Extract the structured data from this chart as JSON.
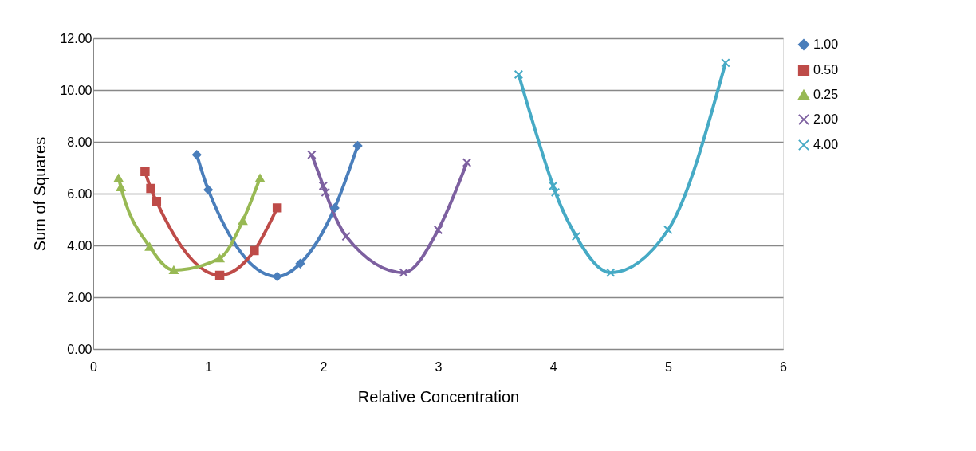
{
  "chart_data": {
    "type": "line",
    "xlabel": "Relative Concentration",
    "ylabel": "Sum of Squares",
    "xlim": [
      0,
      6
    ],
    "xticks": [
      0,
      1,
      2,
      3,
      4,
      5,
      6
    ],
    "ylim": [
      0,
      12
    ],
    "yticks": [
      {
        "value": 0,
        "label": "0.00"
      },
      {
        "value": 2,
        "label": "2.00"
      },
      {
        "value": 4,
        "label": "4.00"
      },
      {
        "value": 6,
        "label": "6.00"
      },
      {
        "value": 8,
        "label": "8.00"
      },
      {
        "value": 10,
        "label": "10.00"
      },
      {
        "value": 12,
        "label": "12.00"
      }
    ],
    "grid": "y",
    "legend": "right",
    "line_style": "solid",
    "series": [
      {
        "name": "1.00",
        "color": "#4a7ebb",
        "marker": "diamond",
        "x": [
          0.9,
          1.0,
          1.6,
          1.8,
          2.1,
          2.3
        ],
        "values": [
          7.5,
          6.15,
          2.8,
          3.3,
          5.45,
          7.85
        ]
      },
      {
        "name": "0.50",
        "color": "#be4b48",
        "marker": "square",
        "x": [
          0.45,
          0.5,
          0.55,
          1.1,
          1.4,
          1.6
        ],
        "values": [
          6.85,
          6.2,
          5.7,
          2.85,
          3.8,
          5.45
        ]
      },
      {
        "name": "0.25",
        "color": "#98b954",
        "marker": "triangle",
        "x": [
          0.22,
          0.24,
          0.49,
          0.7,
          1.1,
          1.3,
          1.45
        ],
        "values": [
          6.6,
          6.25,
          3.95,
          3.05,
          3.5,
          4.95,
          6.6
        ]
      },
      {
        "name": "2.00",
        "color": "#7d60a0",
        "marker": "cross",
        "x": [
          1.9,
          2.0,
          2.02,
          2.2,
          2.7,
          3.0,
          3.25
        ],
        "values": [
          7.5,
          6.3,
          6.05,
          4.35,
          2.95,
          4.6,
          7.2
        ]
      },
      {
        "name": "4.00",
        "color": "#46aac5",
        "marker": "cross",
        "x": [
          3.7,
          4.0,
          4.02,
          4.2,
          4.5,
          5.0,
          5.5
        ],
        "values": [
          10.6,
          6.3,
          6.05,
          4.35,
          2.95,
          4.6,
          11.05
        ]
      }
    ]
  }
}
